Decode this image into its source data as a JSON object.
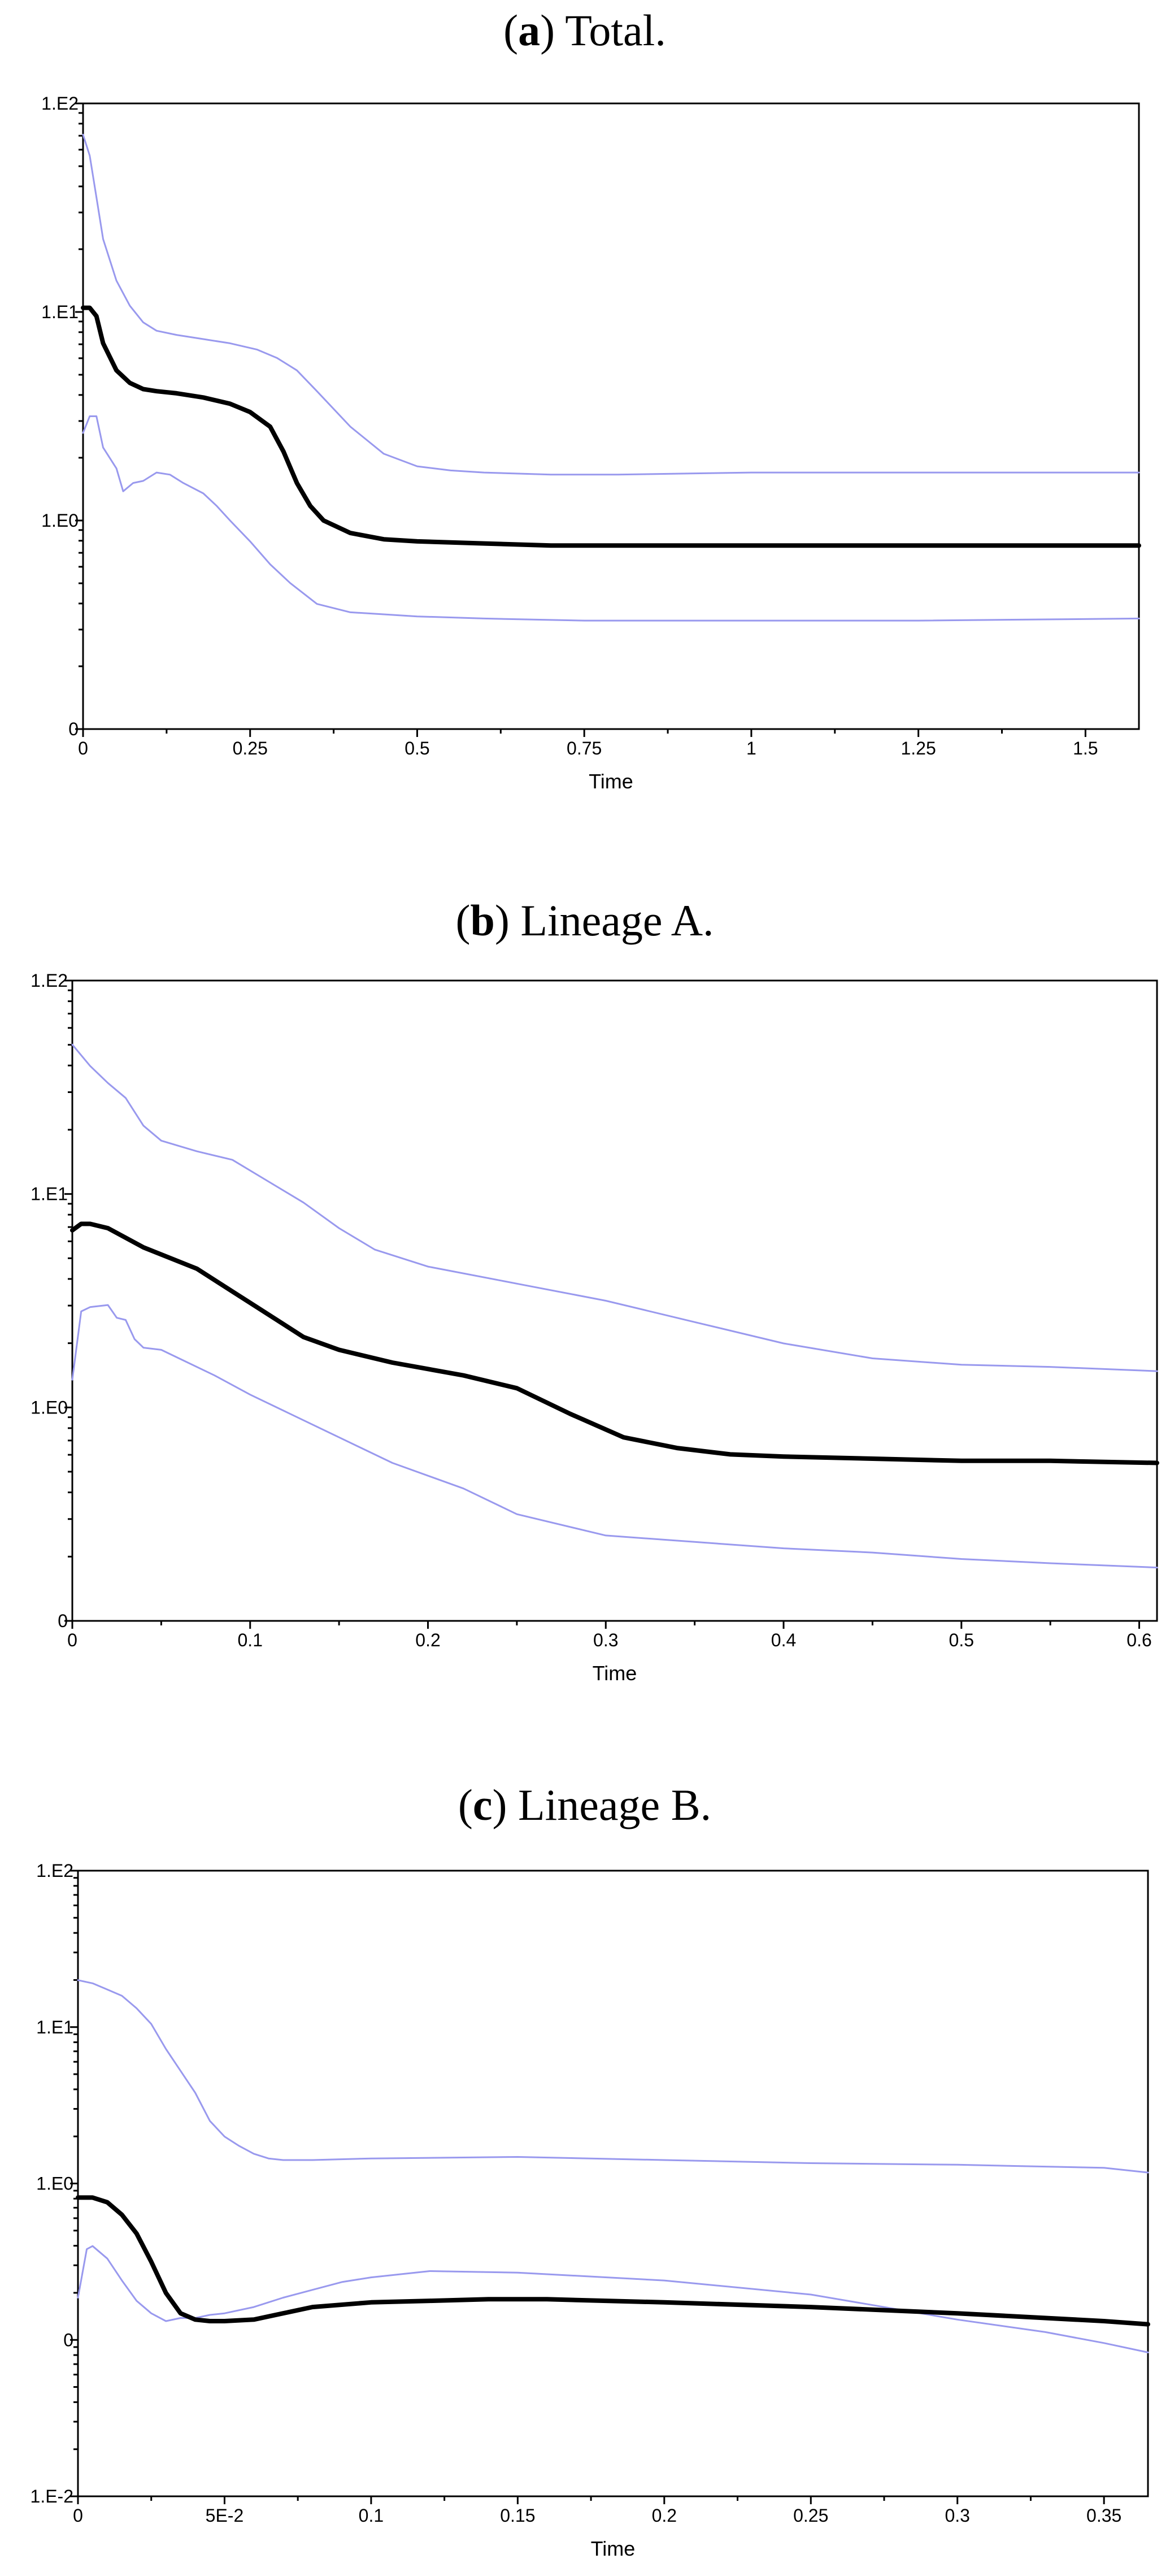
{
  "chart_data": [
    {
      "type": "line",
      "panel_letter": "a",
      "title": "Total.",
      "xlabel": "Time",
      "ylabel": "",
      "xlim": [
        0,
        1.58
      ],
      "x_ticks": [
        0,
        0.25,
        0.5,
        0.75,
        1,
        1.25,
        1.5
      ],
      "x_tick_labels": [
        "0",
        "0.25",
        "0.5",
        "0.75",
        "1",
        "1.25",
        "1.5"
      ],
      "y_ticks": [
        0,
        1,
        2,
        3
      ],
      "y_tick_labels": [
        "0",
        "1.E0",
        "1.E1",
        "1.E2"
      ],
      "ylim": [
        0,
        3
      ],
      "colors": {
        "median": "#000000",
        "band": "#9999ee"
      },
      "series": [
        {
          "role": "upper",
          "x": [
            0,
            0.01,
            0.02,
            0.03,
            0.05,
            0.07,
            0.09,
            0.11,
            0.14,
            0.18,
            0.22,
            0.26,
            0.29,
            0.32,
            0.35,
            0.4,
            0.45,
            0.5,
            0.55,
            0.6,
            0.7,
            0.8,
            1.0,
            1.25,
            1.58
          ],
          "y": [
            2.85,
            2.75,
            2.55,
            2.35,
            2.15,
            2.03,
            1.95,
            1.91,
            1.89,
            1.87,
            1.85,
            1.82,
            1.78,
            1.72,
            1.62,
            1.45,
            1.32,
            1.26,
            1.24,
            1.23,
            1.22,
            1.22,
            1.23,
            1.23,
            1.23
          ]
        },
        {
          "role": "median",
          "x": [
            0,
            0.01,
            0.02,
            0.03,
            0.05,
            0.07,
            0.09,
            0.11,
            0.14,
            0.18,
            0.22,
            0.25,
            0.28,
            0.3,
            0.32,
            0.34,
            0.36,
            0.4,
            0.45,
            0.5,
            0.6,
            0.7,
            0.8,
            1.0,
            1.25,
            1.58
          ],
          "y": [
            2.02,
            2.02,
            1.98,
            1.85,
            1.72,
            1.66,
            1.63,
            1.62,
            1.61,
            1.59,
            1.56,
            1.52,
            1.45,
            1.33,
            1.18,
            1.07,
            1.0,
            0.94,
            0.91,
            0.9,
            0.89,
            0.88,
            0.88,
            0.88,
            0.88,
            0.88
          ]
        },
        {
          "role": "lower",
          "x": [
            0,
            0.01,
            0.02,
            0.03,
            0.05,
            0.06,
            0.075,
            0.09,
            0.11,
            0.13,
            0.15,
            0.18,
            0.2,
            0.22,
            0.25,
            0.28,
            0.31,
            0.35,
            0.4,
            0.45,
            0.5,
            0.6,
            0.75,
            1.0,
            1.25,
            1.58
          ],
          "y": [
            1.42,
            1.5,
            1.5,
            1.35,
            1.25,
            1.14,
            1.18,
            1.19,
            1.23,
            1.22,
            1.18,
            1.13,
            1.07,
            1.0,
            0.9,
            0.79,
            0.7,
            0.6,
            0.56,
            0.55,
            0.54,
            0.53,
            0.52,
            0.52,
            0.52,
            0.53
          ]
        }
      ]
    },
    {
      "type": "line",
      "panel_letter": "b",
      "title": "Lineage A.",
      "xlabel": "Time",
      "ylabel": "",
      "xlim": [
        0,
        0.61
      ],
      "x_ticks": [
        0,
        0.1,
        0.2,
        0.3,
        0.4,
        0.5,
        0.6
      ],
      "x_tick_labels": [
        "0",
        "0.1",
        "0.2",
        "0.3",
        "0.4",
        "0.5",
        "0.6"
      ],
      "y_ticks": [
        0,
        1,
        2,
        3
      ],
      "y_tick_labels": [
        "0",
        "1.E0",
        "1.E1",
        "1.E2"
      ],
      "ylim": [
        0,
        3
      ],
      "colors": {
        "median": "#000000",
        "band": "#9999ee"
      },
      "series": [
        {
          "role": "upper",
          "x": [
            0,
            0.01,
            0.02,
            0.03,
            0.04,
            0.05,
            0.07,
            0.09,
            0.11,
            0.13,
            0.15,
            0.17,
            0.2,
            0.25,
            0.3,
            0.35,
            0.4,
            0.45,
            0.5,
            0.55,
            0.61
          ],
          "y": [
            2.7,
            2.6,
            2.52,
            2.45,
            2.32,
            2.25,
            2.2,
            2.16,
            2.06,
            1.96,
            1.84,
            1.74,
            1.66,
            1.58,
            1.5,
            1.4,
            1.3,
            1.23,
            1.2,
            1.19,
            1.17
          ]
        },
        {
          "role": "median",
          "x": [
            0,
            0.005,
            0.01,
            0.02,
            0.04,
            0.07,
            0.1,
            0.13,
            0.15,
            0.18,
            0.22,
            0.25,
            0.28,
            0.31,
            0.34,
            0.37,
            0.4,
            0.45,
            0.5,
            0.55,
            0.61
          ],
          "y": [
            1.83,
            1.86,
            1.86,
            1.84,
            1.75,
            1.65,
            1.49,
            1.33,
            1.27,
            1.21,
            1.15,
            1.09,
            0.97,
            0.86,
            0.81,
            0.78,
            0.77,
            0.76,
            0.75,
            0.75,
            0.74
          ]
        },
        {
          "role": "lower",
          "x": [
            0,
            0.005,
            0.01,
            0.02,
            0.025,
            0.03,
            0.035,
            0.04,
            0.05,
            0.06,
            0.08,
            0.1,
            0.12,
            0.15,
            0.18,
            0.22,
            0.25,
            0.3,
            0.35,
            0.4,
            0.45,
            0.5,
            0.55,
            0.61
          ],
          "y": [
            1.13,
            1.45,
            1.47,
            1.48,
            1.42,
            1.41,
            1.32,
            1.28,
            1.27,
            1.23,
            1.15,
            1.06,
            0.98,
            0.86,
            0.74,
            0.62,
            0.5,
            0.4,
            0.37,
            0.34,
            0.32,
            0.29,
            0.27,
            0.25
          ]
        }
      ]
    },
    {
      "type": "line",
      "panel_letter": "c",
      "title": "Lineage B.",
      "xlabel": "Time",
      "ylabel": "",
      "xlim": [
        0,
        0.365
      ],
      "x_ticks": [
        0,
        0.05,
        0.1,
        0.15,
        0.2,
        0.25,
        0.3,
        0.35
      ],
      "x_tick_labels": [
        "0",
        "5E-2",
        "0.1",
        "0.15",
        "0.2",
        "0.25",
        "0.3",
        "0.35"
      ],
      "y_ticks": [
        0,
        1,
        2,
        3,
        4
      ],
      "y_tick_labels": [
        "1.E-2",
        "0",
        "1.E0",
        "1.E1",
        "1.E2"
      ],
      "ylim": [
        0,
        4
      ],
      "colors": {
        "median": "#000000",
        "band": "#9999ee"
      },
      "series": [
        {
          "role": "upper",
          "x": [
            0,
            0.005,
            0.01,
            0.015,
            0.02,
            0.025,
            0.03,
            0.035,
            0.04,
            0.045,
            0.05,
            0.055,
            0.06,
            0.065,
            0.07,
            0.08,
            0.1,
            0.15,
            0.2,
            0.25,
            0.3,
            0.35,
            0.365
          ],
          "y": [
            3.3,
            3.28,
            3.24,
            3.2,
            3.12,
            3.02,
            2.86,
            2.72,
            2.58,
            2.4,
            2.3,
            2.24,
            2.19,
            2.16,
            2.15,
            2.15,
            2.16,
            2.17,
            2.15,
            2.13,
            2.12,
            2.1,
            2.07
          ]
        },
        {
          "role": "median",
          "x": [
            0,
            0.005,
            0.01,
            0.015,
            0.02,
            0.025,
            0.03,
            0.035,
            0.04,
            0.045,
            0.05,
            0.06,
            0.07,
            0.08,
            0.1,
            0.12,
            0.14,
            0.16,
            0.2,
            0.25,
            0.3,
            0.35,
            0.365
          ],
          "y": [
            1.91,
            1.91,
            1.88,
            1.8,
            1.68,
            1.5,
            1.3,
            1.17,
            1.13,
            1.12,
            1.12,
            1.13,
            1.17,
            1.21,
            1.24,
            1.25,
            1.26,
            1.26,
            1.24,
            1.21,
            1.17,
            1.12,
            1.1
          ]
        },
        {
          "role": "lower",
          "x": [
            0,
            0.003,
            0.005,
            0.01,
            0.015,
            0.02,
            0.025,
            0.03,
            0.035,
            0.04,
            0.045,
            0.05,
            0.06,
            0.07,
            0.08,
            0.09,
            0.1,
            0.12,
            0.15,
            0.2,
            0.25,
            0.3,
            0.33,
            0.35,
            0.365
          ],
          "y": [
            1.27,
            1.58,
            1.6,
            1.52,
            1.38,
            1.25,
            1.17,
            1.12,
            1.14,
            1.14,
            1.16,
            1.17,
            1.21,
            1.27,
            1.32,
            1.37,
            1.4,
            1.44,
            1.43,
            1.38,
            1.29,
            1.13,
            1.05,
            0.98,
            0.92
          ]
        }
      ]
    }
  ]
}
